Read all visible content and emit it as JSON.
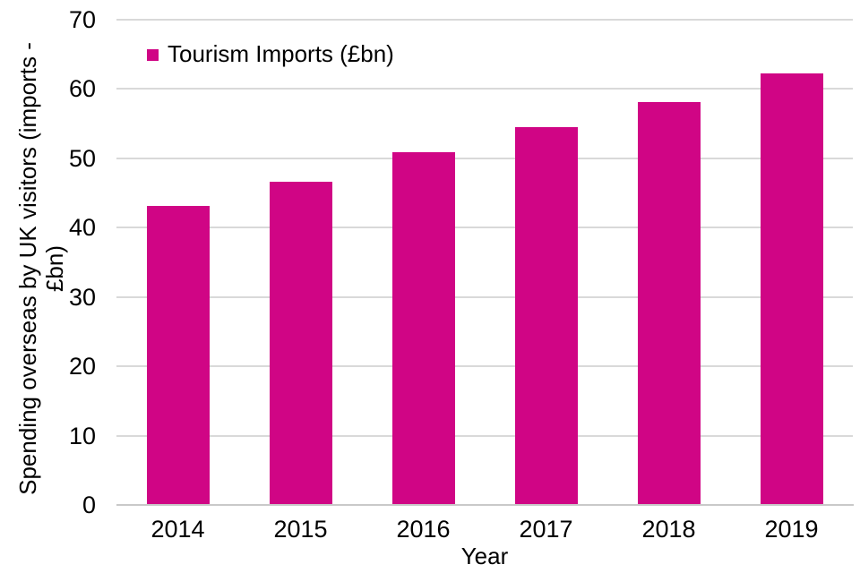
{
  "chart_data": {
    "type": "bar",
    "title": "",
    "categories": [
      "2014",
      "2015",
      "2016",
      "2017",
      "2018",
      "2019"
    ],
    "series": [
      {
        "name": "Tourism Imports (£bn)",
        "color": "#D00585",
        "values": [
          43.1,
          46.6,
          50.9,
          54.5,
          58.1,
          62.3
        ]
      }
    ],
    "xlabel": "Year",
    "ylabel": "Spending overseas by UK visitors (imports -\n£bn)",
    "ylim": [
      0,
      70
    ],
    "yticks": [
      0,
      10,
      20,
      30,
      40,
      50,
      60,
      70
    ],
    "grid": true,
    "legend_position": "top-left",
    "colors": {
      "grid": "#D9D9D9",
      "axis": "#C9C9C9",
      "text": "#000000",
      "background": "#FFFFFF"
    }
  }
}
